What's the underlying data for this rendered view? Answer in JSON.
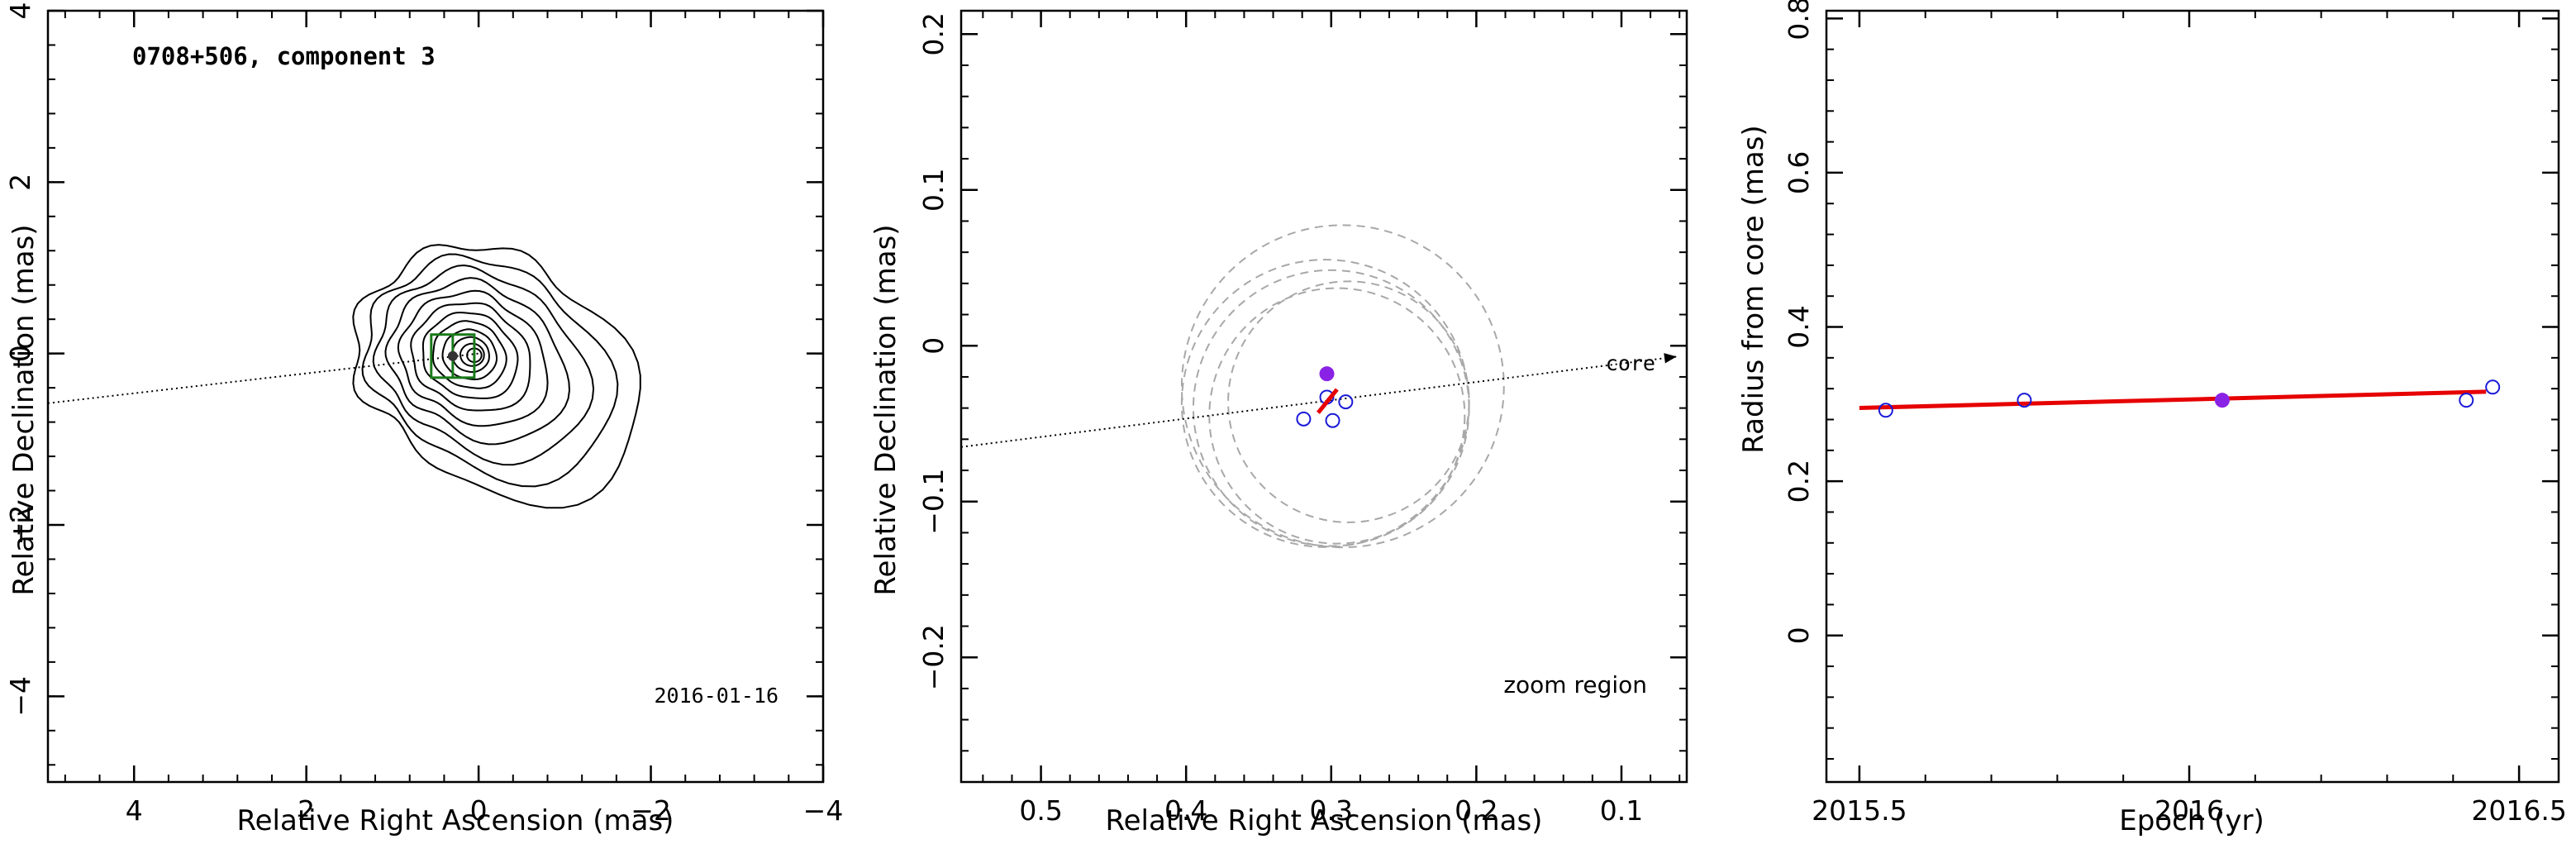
{
  "chart_data": [
    {
      "type": "contour",
      "title": "0708+506, component 3",
      "annotation": "2016-01-16",
      "xlabel": "Relative Right Ascension (mas)",
      "ylabel": "Relative Declination (mas)",
      "xlim": [
        5,
        -4
      ],
      "ylim": [
        -5,
        4
      ],
      "xticks": [
        4,
        2,
        0,
        -2,
        -4
      ],
      "yticks": [
        -4,
        -2,
        0,
        2,
        4
      ],
      "xtick_labels": [
        "4",
        "2",
        "0",
        "−2",
        "−4"
      ],
      "ytick_labels": [
        "−4",
        "−2",
        "0",
        "2",
        "4"
      ],
      "core_position": [
        0,
        0
      ],
      "component_position": [
        0.3,
        -0.03
      ],
      "core_direction_line": {
        "from": [
          5,
          -0.58
        ],
        "to": [
          0,
          0
        ]
      },
      "contour_levels": 12,
      "colors": {
        "contours": "#000000",
        "box": "#1a7a1a",
        "component": "#000000"
      }
    },
    {
      "type": "scatter",
      "annotation": "zoom region",
      "arrow_label": "core",
      "xlabel": "Relative Right Ascension (mas)",
      "ylabel": "Relative Declination (mas)",
      "xlim": [
        0.555,
        0.055
      ],
      "ylim": [
        -0.28,
        0.215
      ],
      "xticks": [
        0.5,
        0.4,
        0.3,
        0.2,
        0.1
      ],
      "yticks": [
        -0.2,
        -0.1,
        0,
        0.1,
        0.2
      ],
      "xtick_labels": [
        "0.5",
        "0.4",
        "0.3",
        "0.2",
        "0.1"
      ],
      "ytick_labels": [
        "−0.2",
        "−0.1",
        "0",
        "0.1",
        "0.2"
      ],
      "core_direction_line": {
        "from": [
          0.555,
          -0.065
        ],
        "to": [
          0.062,
          -0.007
        ]
      },
      "points": [
        {
          "x": 0.319,
          "y": -0.047
        },
        {
          "x": 0.299,
          "y": -0.048
        },
        {
          "x": 0.29,
          "y": -0.036
        },
        {
          "x": 0.303,
          "y": -0.033
        }
      ],
      "highlighted_point": {
        "x": 0.303,
        "y": -0.018
      },
      "fit_segment": {
        "from": [
          0.309,
          -0.043
        ],
        "to": [
          0.296,
          -0.028
        ]
      },
      "uncertainty_circles": [
        {
          "cx": 0.292,
          "cy": -0.026,
          "r": 0.111
        },
        {
          "cx": 0.3,
          "cy": -0.04,
          "r": 0.095
        },
        {
          "cx": 0.296,
          "cy": -0.045,
          "r": 0.088
        },
        {
          "cx": 0.288,
          "cy": -0.036,
          "r": 0.083
        },
        {
          "cx": 0.304,
          "cy": -0.037,
          "r": 0.099
        }
      ],
      "colors": {
        "points": "#1a1ad8",
        "highlight": "#8a22e6",
        "fit": "#e60000",
        "circles": "#a8a8a8"
      }
    },
    {
      "type": "scatter",
      "xlabel": "Epoch (yr)",
      "ylabel": "Radius from core (mas)",
      "xlim": [
        2015.45,
        2016.56
      ],
      "ylim": [
        -0.19,
        0.81
      ],
      "xticks": [
        2015.5,
        2016,
        2016.5
      ],
      "yticks": [
        0,
        0.2,
        0.4,
        0.6,
        0.8
      ],
      "xtick_labels": [
        "2015.5",
        "2016",
        "2016.5"
      ],
      "ytick_labels": [
        "0",
        "0.2",
        "0.4",
        "0.6",
        "0.8"
      ],
      "points": [
        {
          "x": 2015.54,
          "y": 0.292
        },
        {
          "x": 2015.75,
          "y": 0.305
        },
        {
          "x": 2016.42,
          "y": 0.305
        },
        {
          "x": 2016.46,
          "y": 0.322
        }
      ],
      "highlighted_point": {
        "x": 2016.05,
        "y": 0.305
      },
      "fit_line": {
        "from": [
          2015.5,
          0.295
        ],
        "to": [
          2016.45,
          0.316
        ]
      },
      "colors": {
        "points": "#1a1ad8",
        "highlight": "#8a22e6",
        "fit": "#e60000"
      }
    }
  ]
}
